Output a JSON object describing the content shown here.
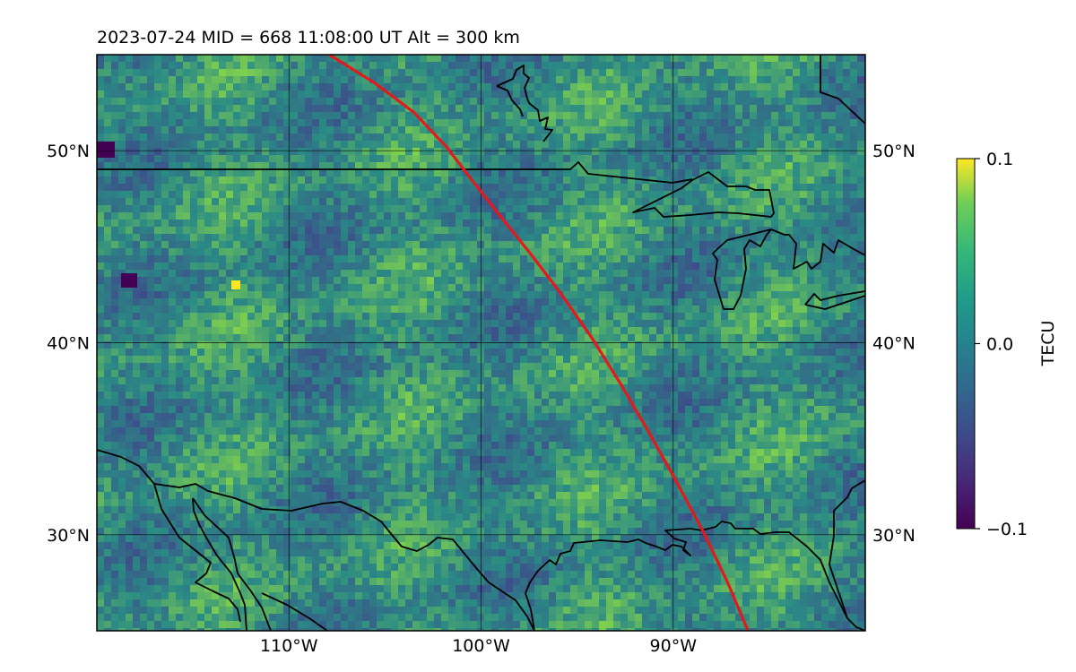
{
  "title": "2023-07-24  MID = 668    11:08:00  UT  Alt = 300 km",
  "map": {
    "lon_range": [
      -120,
      -80
    ],
    "lat_range": [
      25,
      55
    ],
    "lon_ticks": [
      {
        "value": -110,
        "label": "110°W"
      },
      {
        "value": -100,
        "label": "100°W"
      },
      {
        "value": -90,
        "label": "90°W"
      }
    ],
    "lat_ticks": [
      {
        "value": 30,
        "label": "30°N"
      },
      {
        "value": 40,
        "label": "40°N"
      },
      {
        "value": 50,
        "label": "50°N"
      }
    ],
    "field_colors": {
      "base": "#2a8a85",
      "high": "#7fd04e",
      "low": "#3d4d8a",
      "min": "#440154",
      "max": "#fde725"
    },
    "track_color": "#e31a1c",
    "track_lonlat": [
      [
        -107.9,
        55
      ],
      [
        -105.5,
        53.5
      ],
      [
        -103.5,
        52.0
      ],
      [
        -101.8,
        50.2
      ],
      [
        -100.5,
        48.5
      ],
      [
        -99.0,
        46.6
      ],
      [
        -97.4,
        44.6
      ],
      [
        -95.8,
        42.5
      ],
      [
        -94.2,
        40.2
      ],
      [
        -92.7,
        37.8
      ],
      [
        -91.3,
        35.4
      ],
      [
        -89.9,
        32.9
      ],
      [
        -88.4,
        30.1
      ],
      [
        -87.2,
        27.6
      ],
      [
        -86.1,
        25
      ]
    ]
  },
  "colorbar": {
    "label": "TECU",
    "ticks": [
      {
        "value": 0.1,
        "label": "0.1"
      },
      {
        "value": 0.0,
        "label": "0.0"
      },
      {
        "value": -0.1,
        "label": "−0.1"
      }
    ],
    "range": [
      -0.1,
      0.1
    ]
  }
}
